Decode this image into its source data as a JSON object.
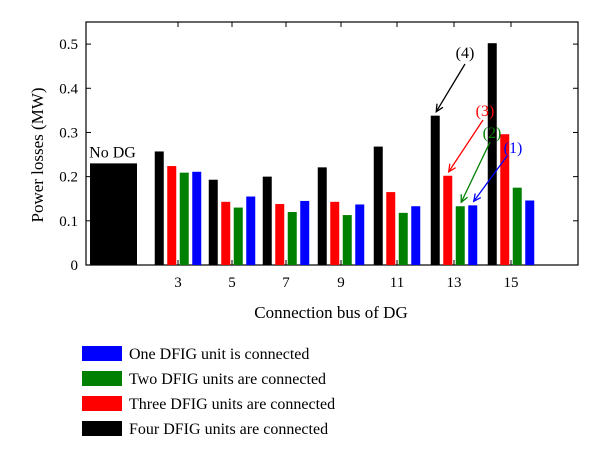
{
  "chart_data": {
    "type": "bar",
    "xlabel": "Connection bus of DG",
    "ylabel": "Power losses (MW)",
    "ylim": [
      0,
      0.55
    ],
    "y_ticks": [
      "0",
      "0.1",
      "0.2",
      "0.3",
      "0.4",
      "0.5"
    ],
    "categories": [
      "3",
      "5",
      "7",
      "9",
      "11",
      "13",
      "15"
    ],
    "baseline": {
      "label": "No DG",
      "value": 0.23,
      "color": "#000000"
    },
    "series": [
      {
        "name": "Four DFIG units are connected",
        "color": "#000000",
        "values": [
          0.257,
          0.193,
          0.2,
          0.221,
          0.268,
          0.338,
          0.502
        ]
      },
      {
        "name": "Three DFIG units are connected",
        "color": "#ff0000",
        "values": [
          0.224,
          0.143,
          0.138,
          0.143,
          0.165,
          0.202,
          0.296
        ]
      },
      {
        "name": "Two DFIG units are connected",
        "color": "#008000",
        "values": [
          0.209,
          0.13,
          0.12,
          0.113,
          0.118,
          0.133,
          0.175
        ]
      },
      {
        "name": "One DFIG unit is connected",
        "color": "#0000ff",
        "values": [
          0.211,
          0.155,
          0.145,
          0.137,
          0.133,
          0.135,
          0.146
        ]
      }
    ],
    "legend_order": [
      3,
      2,
      1,
      0
    ],
    "legend_position": "bottom",
    "annotations": [
      {
        "text": "(4)",
        "color": "#000000",
        "category": "13",
        "series": 0
      },
      {
        "text": "(3)",
        "color": "#ff0000",
        "category": "13",
        "series": 1
      },
      {
        "text": "(2)",
        "color": "#008000",
        "category": "13",
        "series": 2
      },
      {
        "text": "(1)",
        "color": "#0000ff",
        "category": "13",
        "series": 3
      }
    ],
    "grid": false
  }
}
